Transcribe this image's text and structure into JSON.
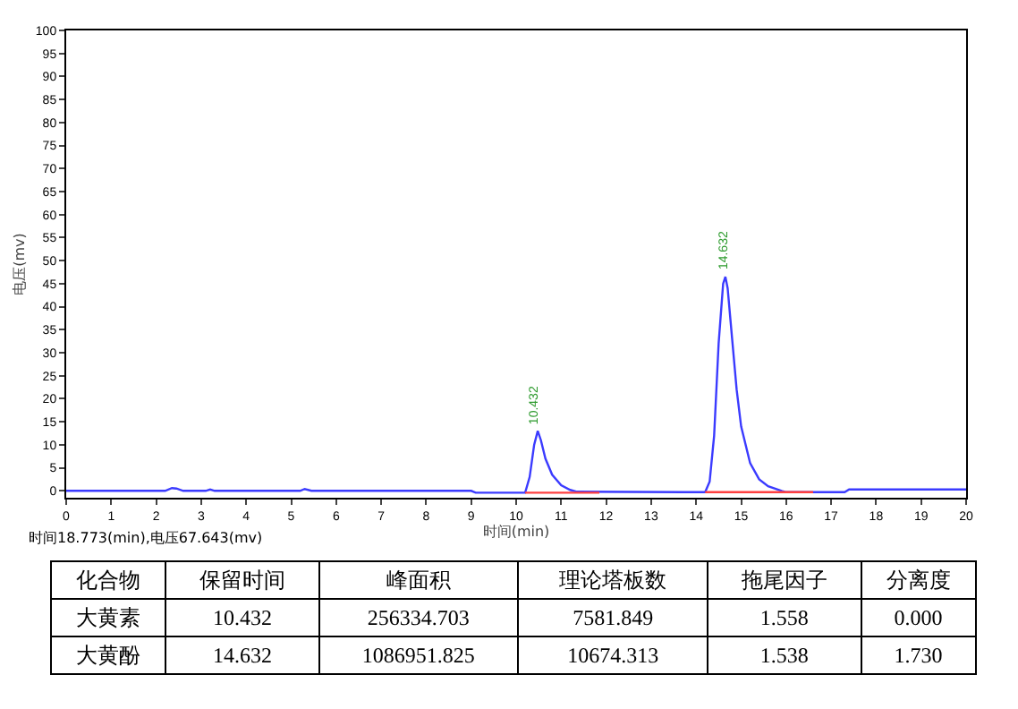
{
  "chart_data": [
    {
      "type": "line",
      "xlabel": "时间(min)",
      "ylabel": "电压(mv)",
      "xlim": [
        0,
        20
      ],
      "xticks": [
        0,
        1,
        2,
        3,
        4,
        5,
        6,
        7,
        8,
        9,
        10,
        11,
        12,
        13,
        14,
        15,
        16,
        17,
        18,
        19,
        20
      ],
      "ylim": [
        -1.5,
        100
      ],
      "yticks": [
        0,
        5,
        10,
        15,
        20,
        25,
        30,
        35,
        40,
        45,
        50,
        55,
        60,
        65,
        70,
        75,
        80,
        85,
        90,
        95,
        100
      ],
      "grid": false,
      "marker": "none",
      "line_style": "solid",
      "series": [
        {
          "color": "#3b3bff",
          "x": [
            0,
            2.2,
            2.35,
            2.45,
            2.6,
            3.1,
            3.2,
            3.3,
            5.2,
            5.3,
            5.45,
            9,
            9.1,
            10.2,
            10.3,
            10.4,
            10.48,
            10.55,
            10.65,
            10.8,
            11,
            11.2,
            11.35,
            14.2,
            14.3,
            14.4,
            14.5,
            14.6,
            14.65,
            14.7,
            14.8,
            14.9,
            15,
            15.2,
            15.4,
            15.6,
            15.9,
            16,
            17.3,
            17.4,
            20
          ],
          "values": [
            0,
            0,
            0.6,
            0.5,
            0,
            0,
            0.3,
            0,
            0,
            0.4,
            0,
            0,
            -0.4,
            -0.4,
            3,
            10,
            13,
            11,
            7,
            3.5,
            1.2,
            0.2,
            -0.2,
            -0.3,
            2,
            12,
            32,
            45,
            46.5,
            44,
            33,
            22,
            14,
            6,
            2.5,
            1,
            0,
            -0.3,
            -0.3,
            0.3,
            0.3
          ]
        },
        {
          "color": "#ff4040",
          "x": [
            10.2,
            11.85,
            11.86,
            14.2,
            16.6
          ],
          "values": [
            -0.4,
            -0.4,
            null,
            -0.3,
            -0.3
          ]
        }
      ],
      "annotations": [
        {
          "text": "10.432",
          "x": 10.432,
          "y": 13
        },
        {
          "text": "14.632",
          "x": 14.632,
          "y": 46.5
        },
        "时间18.773(min),电压67.643(mv)"
      ]
    },
    {
      "type": "other",
      "categories": [
        "化合物",
        "保留时间",
        "峰面积",
        "理论塔板数",
        "拖尾因子",
        "分离度"
      ],
      "annotations": [
        "大黄素",
        "10.432",
        "256334.703",
        "7581.849",
        "1.558",
        "0.000",
        "大黄酚",
        "14.632",
        "1086951.825",
        "10674.313",
        "1.538",
        "1.730"
      ]
    }
  ]
}
